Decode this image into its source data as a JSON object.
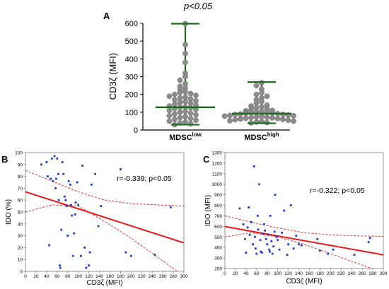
{
  "chart_data": [
    {
      "id": "A",
      "type": "scatter",
      "panel_label": "A",
      "title": "p<0.05",
      "ylabel": "CD3ζ (MFI)",
      "ylim": [
        0,
        600
      ],
      "yticks": [
        0,
        100,
        200,
        300,
        400,
        500,
        600
      ],
      "categories": [
        {
          "main": "MDSC",
          "sup": "low"
        },
        {
          "main": "MDSC",
          "sup": "high"
        }
      ],
      "point_color": "#8c8c8c",
      "line_color": "#1a6b1a",
      "groups": [
        {
          "median": 128,
          "min": 30,
          "max": 598,
          "values": [
            598,
            480,
            430,
            380,
            320,
            300,
            280,
            260,
            245,
            235,
            225,
            215,
            210,
            205,
            200,
            195,
            190,
            185,
            180,
            175,
            170,
            165,
            160,
            155,
            150,
            145,
            140,
            135,
            130,
            128,
            125,
            120,
            115,
            110,
            105,
            100,
            95,
            90,
            85,
            80,
            75,
            70,
            65,
            60,
            55,
            50,
            45,
            40,
            35,
            30
          ]
        },
        {
          "median": 92,
          "min": 38,
          "max": 270,
          "values": [
            265,
            250,
            230,
            210,
            200,
            190,
            180,
            170,
            160,
            150,
            140,
            135,
            130,
            125,
            120,
            115,
            110,
            108,
            105,
            102,
            100,
            98,
            95,
            93,
            92,
            90,
            88,
            86,
            84,
            82,
            80,
            78,
            76,
            74,
            72,
            70,
            68,
            66,
            64,
            62,
            60,
            58,
            55,
            52,
            50,
            48,
            45,
            42,
            40
          ]
        }
      ]
    },
    {
      "id": "B",
      "type": "scatter",
      "panel_label": "B",
      "annotation": "r=-0.339; p<0.05",
      "xlabel": "CD3ζ (MFI)",
      "ylabel": "IDO (%)",
      "xlim": [
        0,
        300
      ],
      "ylim": [
        0,
        100
      ],
      "xticks": [
        0,
        20,
        40,
        60,
        80,
        100,
        120,
        140,
        160,
        180,
        200,
        220,
        240,
        260,
        280,
        300
      ],
      "yticks": [
        0,
        10,
        20,
        30,
        40,
        50,
        60,
        70,
        80,
        90,
        100
      ],
      "point_color": "#1f3cc7",
      "fit_color": "#e8191b",
      "fit": {
        "x": [
          0,
          300
        ],
        "y": [
          67,
          24
        ]
      },
      "ci_upper": {
        "x": [
          0,
          50,
          100,
          150,
          200,
          250,
          300
        ],
        "y": [
          85,
          76,
          67,
          60,
          57,
          56,
          55
        ]
      },
      "ci_lower": {
        "x": [
          0,
          50,
          100,
          150,
          200,
          250,
          300
        ],
        "y": [
          50,
          56,
          55,
          42,
          28,
          12,
          -4
        ]
      },
      "points": [
        [
          30,
          90
        ],
        [
          40,
          92
        ],
        [
          42,
          80
        ],
        [
          45,
          22
        ],
        [
          48,
          78
        ],
        [
          50,
          95
        ],
        [
          52,
          76
        ],
        [
          55,
          97
        ],
        [
          57,
          70
        ],
        [
          58,
          78
        ],
        [
          60,
          95
        ],
        [
          62,
          82
        ],
        [
          63,
          60
        ],
        [
          65,
          5
        ],
        [
          66,
          3
        ],
        [
          68,
          35
        ],
        [
          70,
          92
        ],
        [
          72,
          82
        ],
        [
          74,
          63
        ],
        [
          76,
          60
        ],
        [
          78,
          55
        ],
        [
          80,
          30
        ],
        [
          82,
          76
        ],
        [
          85,
          73
        ],
        [
          86,
          56
        ],
        [
          88,
          47
        ],
        [
          90,
          13
        ],
        [
          92,
          32
        ],
        [
          94,
          48
        ],
        [
          95,
          58
        ],
        [
          98,
          75
        ],
        [
          100,
          56
        ],
        [
          105,
          13
        ],
        [
          108,
          89
        ],
        [
          112,
          20
        ],
        [
          115,
          3
        ],
        [
          120,
          5
        ],
        [
          122,
          16
        ],
        [
          125,
          73
        ],
        [
          132,
          82
        ],
        [
          138,
          38
        ],
        [
          143,
          55
        ],
        [
          180,
          86
        ],
        [
          190,
          16
        ],
        [
          200,
          13
        ],
        [
          245,
          14
        ],
        [
          275,
          54
        ]
      ]
    },
    {
      "id": "C",
      "type": "scatter",
      "panel_label": "C",
      "annotation": "r=-0.322; p<0.05",
      "xlabel": "CD3ζ (MFI)",
      "ylabel": "IDO (MFI)",
      "xlim": [
        0,
        300
      ],
      "ylim": [
        200,
        1300
      ],
      "xticks": [
        0,
        20,
        40,
        60,
        80,
        100,
        120,
        140,
        160,
        180,
        200,
        220,
        240,
        260,
        280,
        300
      ],
      "yticks": [
        200,
        300,
        400,
        500,
        600,
        700,
        800,
        900,
        1000,
        1100,
        1200,
        1300
      ],
      "point_color": "#1f3cc7",
      "fit_color": "#e8191b",
      "fit": {
        "x": [
          0,
          300
        ],
        "y": [
          598,
          330
        ]
      },
      "ci_upper": {
        "x": [
          0,
          50,
          100,
          150,
          200,
          250,
          300
        ],
        "y": [
          700,
          640,
          585,
          540,
          520,
          510,
          505
        ]
      },
      "ci_lower": {
        "x": [
          0,
          50,
          100,
          150,
          200,
          250,
          300
        ],
        "y": [
          500,
          540,
          500,
          430,
          340,
          250,
          160
        ]
      },
      "points": [
        [
          28,
          770
        ],
        [
          35,
          620
        ],
        [
          38,
          480
        ],
        [
          40,
          350
        ],
        [
          43,
          590
        ],
        [
          45,
          780
        ],
        [
          47,
          520
        ],
        [
          50,
          640
        ],
        [
          53,
          430
        ],
        [
          55,
          1170
        ],
        [
          57,
          500
        ],
        [
          58,
          390
        ],
        [
          60,
          340
        ],
        [
          62,
          700
        ],
        [
          63,
          570
        ],
        [
          65,
          1000
        ],
        [
          67,
          470
        ],
        [
          68,
          360
        ],
        [
          70,
          350
        ],
        [
          72,
          530
        ],
        [
          74,
          620
        ],
        [
          76,
          560
        ],
        [
          78,
          480
        ],
        [
          80,
          430
        ],
        [
          82,
          520
        ],
        [
          84,
          380
        ],
        [
          85,
          360
        ],
        [
          86,
          700
        ],
        [
          88,
          460
        ],
        [
          90,
          340
        ],
        [
          92,
          410
        ],
        [
          94,
          550
        ],
        [
          95,
          900
        ],
        [
          98,
          500
        ],
        [
          100,
          470
        ],
        [
          103,
          380
        ],
        [
          108,
          540
        ],
        [
          112,
          750
        ],
        [
          118,
          330
        ],
        [
          120,
          430
        ],
        [
          125,
          800
        ],
        [
          130,
          390
        ],
        [
          135,
          510
        ],
        [
          140,
          430
        ],
        [
          145,
          420
        ],
        [
          175,
          480
        ],
        [
          180,
          370
        ],
        [
          195,
          340
        ],
        [
          205,
          380
        ],
        [
          245,
          330
        ],
        [
          272,
          450
        ],
        [
          275,
          490
        ]
      ]
    }
  ]
}
